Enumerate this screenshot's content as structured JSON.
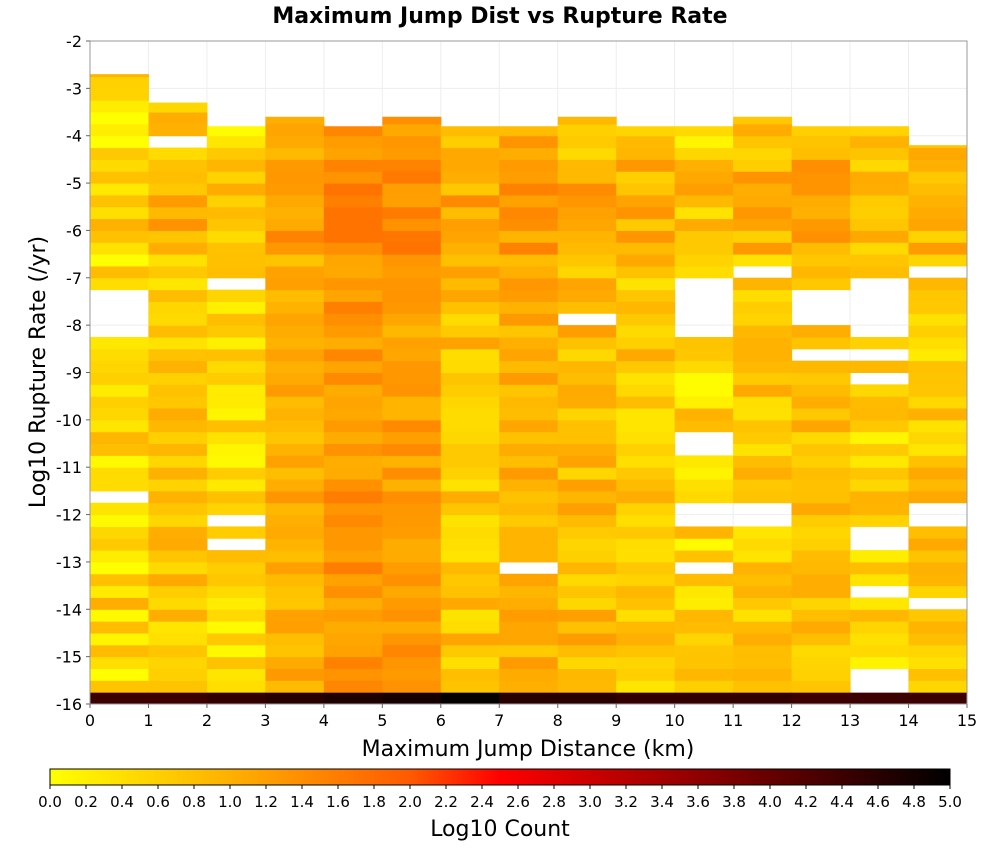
{
  "chart_data": {
    "type": "heatmap",
    "title": "Maximum Jump Dist vs Rupture Rate",
    "xlabel": "Maximum Jump Distance (km)",
    "ylabel": "Log10 Rupture Rate (/yr)",
    "colorbar_label": "Log10 Count",
    "xlim": [
      0,
      15
    ],
    "ylim": [
      -16,
      -2
    ],
    "x_ticks": [
      "0",
      "1",
      "2",
      "3",
      "4",
      "5",
      "6",
      "7",
      "8",
      "9",
      "10",
      "11",
      "12",
      "13",
      "14",
      "15"
    ],
    "y_ticks": [
      "-2",
      "-3",
      "-4",
      "-5",
      "-6",
      "-7",
      "-8",
      "-9",
      "-10",
      "-11",
      "-12",
      "-13",
      "-14",
      "-15",
      "-16"
    ],
    "colorbar_ticks": [
      "0.0",
      "0.2",
      "0.4",
      "0.6",
      "0.8",
      "1.0",
      "1.2",
      "1.4",
      "1.6",
      "1.8",
      "2.0",
      "2.2",
      "2.4",
      "2.6",
      "2.8",
      "3.0",
      "3.2",
      "3.4",
      "3.6",
      "3.8",
      "4.0",
      "4.2",
      "4.4",
      "4.6",
      "4.8",
      "5.0"
    ],
    "color_range": [
      0,
      5
    ],
    "colorscale": [
      "#ffff00",
      "#ff9900",
      "#ff0000",
      "#000000"
    ],
    "x_bin_width": 1,
    "y_bin_width": 0.25,
    "row_y_start": -16,
    "columns": [
      {
        "x": 0.5,
        "top": -2.7,
        "base": 0.5,
        "amp": 0.55,
        "gaps": [
          -7.5,
          -8.0,
          -11.7
        ]
      },
      {
        "x": 1.5,
        "top": -3.3,
        "base": 0.7,
        "amp": 0.4,
        "gaps": [
          -4.2
        ]
      },
      {
        "x": 2.5,
        "top": -3.8,
        "base": 0.45,
        "amp": 0.4,
        "gaps": [
          -7.1,
          -12.2,
          -12.7
        ]
      },
      {
        "x": 3.5,
        "top": -3.6,
        "base": 1.0,
        "amp": 0.3,
        "gaps": []
      },
      {
        "x": 4.5,
        "top": -3.8,
        "base": 1.3,
        "amp": 0.3,
        "gaps": []
      },
      {
        "x": 5.5,
        "top": -3.6,
        "base": 1.2,
        "amp": 0.3,
        "gaps": []
      },
      {
        "x": 6.5,
        "top": -3.8,
        "base": 0.75,
        "amp": 0.45,
        "gaps": []
      },
      {
        "x": 7.5,
        "top": -3.8,
        "base": 1.0,
        "amp": 0.35,
        "gaps": [
          -13.2
        ]
      },
      {
        "x": 8.5,
        "top": -3.6,
        "base": 0.85,
        "amp": 0.4,
        "gaps": [
          -7.8
        ]
      },
      {
        "x": 9.5,
        "top": -3.8,
        "base": 0.7,
        "amp": 0.4,
        "gaps": []
      },
      {
        "x": 10.5,
        "top": -3.8,
        "base": 0.5,
        "amp": 0.5,
        "gaps": [
          -7.2,
          -7.5,
          -7.8,
          -8.0,
          -8.2,
          -10.5,
          -12.0,
          -12.2,
          -13.2
        ]
      },
      {
        "x": 11.5,
        "top": -3.6,
        "base": 0.7,
        "amp": 0.4,
        "gaps": [
          -6.9,
          -12.0,
          -12.2
        ]
      },
      {
        "x": 12.5,
        "top": -3.8,
        "base": 0.8,
        "amp": 0.35,
        "gaps": [
          -7.5,
          -7.8,
          -8.6
        ]
      },
      {
        "x": 13.5,
        "top": -3.8,
        "base": 0.55,
        "amp": 0.45,
        "gaps": [
          -7.2,
          -7.5,
          -8.0,
          -8.6,
          -9.2,
          -12.5,
          -13.7,
          -15.5,
          -15.8
        ]
      },
      {
        "x": 14.5,
        "top": -4.2,
        "base": 0.65,
        "amp": 0.45,
        "gaps": [
          -6.9,
          -12.0,
          -12.2,
          -13.9
        ]
      }
    ],
    "bottom_row": {
      "y": -15.88,
      "values": [
        4.4,
        4.4,
        4.5,
        4.6,
        4.7,
        4.8,
        4.95,
        4.6,
        4.6,
        4.5,
        4.5,
        4.5,
        4.4,
        4.4,
        4.4
      ]
    }
  }
}
